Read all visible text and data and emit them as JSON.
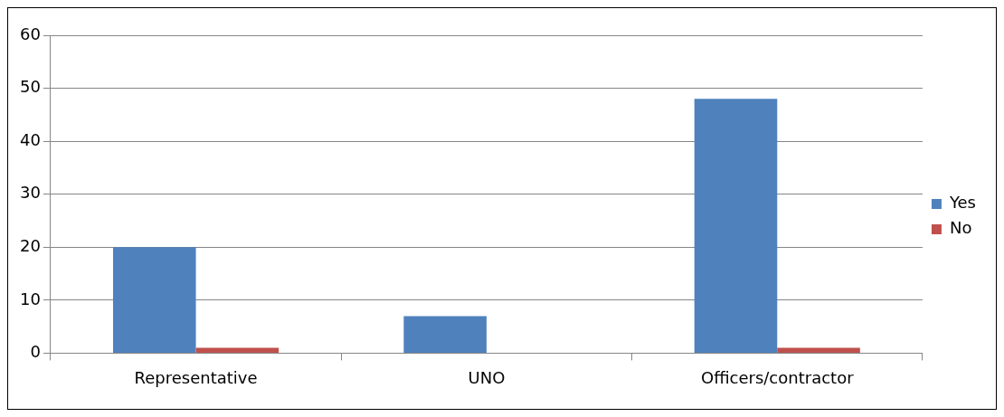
{
  "chart_data": {
    "type": "bar",
    "categories": [
      "Representative",
      "UNO",
      "Officers/contractor"
    ],
    "series": [
      {
        "name": "Yes",
        "color": "#4f81bd",
        "values": [
          20,
          7,
          48
        ]
      },
      {
        "name": "No",
        "color": "#c0504d",
        "values": [
          1,
          0,
          1
        ]
      }
    ],
    "ylim": [
      0,
      60
    ],
    "yticks": [
      0,
      10,
      20,
      30,
      40,
      50,
      60
    ],
    "grid": "y",
    "legend": "right"
  }
}
